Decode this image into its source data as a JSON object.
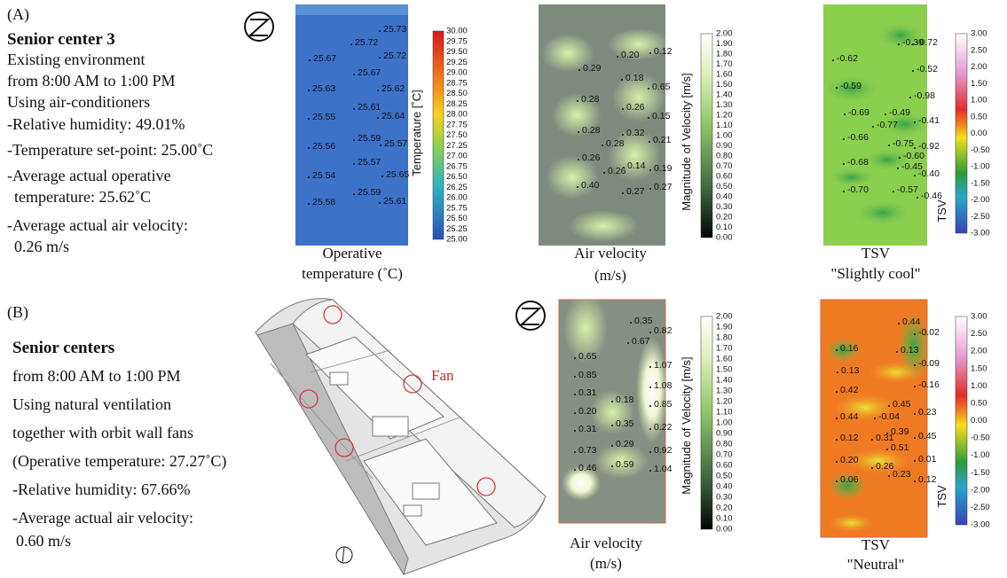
{
  "panel_a": {
    "label": "(A)",
    "title": "Senior center 3",
    "details": [
      "Existing environment",
      "from 8:00 AM  to 1:00 PM",
      "Using air-conditioners",
      "-Relative humidity: 49.01%",
      "-Temperature set-point: 25.00˚C",
      "-Average actual operative",
      "temperature: 25.62˚C",
      "-Average actual air velocity:",
      "0.26 m/s"
    ],
    "maps": [
      {
        "points": [
          "25.73",
          "25.72",
          "25.67",
          "25.72",
          "25.67",
          "25.63",
          "25.62",
          "25.61",
          "25.55",
          "25.64",
          "25.59",
          "25.57",
          "25.56",
          "25.57",
          "25.54",
          "25.65",
          "25.59",
          "25.58",
          "25.61"
        ],
        "colorbar": {
          "title": "Temperature [˚C]",
          "ticks": [
            "30.00",
            "29.75",
            "29.50",
            "29.25",
            "29.00",
            "28.75",
            "28.50",
            "28.25",
            "28.00",
            "27.75",
            "27.50",
            "27.25",
            "27.00",
            "26.75",
            "26.50",
            "26.25",
            "26.00",
            "25.75",
            "25.50",
            "25.25",
            "25.00"
          ]
        },
        "caption": [
          "Operative",
          "temperature (˚C)"
        ]
      },
      {
        "points": [
          "0.20",
          "0.12",
          "0.29",
          "0.18",
          "0.65",
          "0.28",
          "0.26",
          "0.15",
          "0.28",
          "0.32",
          "0.21",
          "0.28",
          "0.26",
          "0.14",
          "0.19",
          "0.26",
          "0.40",
          "0.27",
          "0.27"
        ],
        "colorbar": {
          "title": "Magnitude of Velocity [m/s]",
          "ticks": [
            "2.00",
            "1.90",
            "1.80",
            "1.70",
            "1.60",
            "1.50",
            "1.40",
            "1.30",
            "1.20",
            "1.10",
            "1.00",
            "0.90",
            "0.80",
            "0.70",
            "0.60",
            "0.50",
            "0.40",
            "0.30",
            "0.20",
            "0.10",
            "0.00"
          ]
        },
        "caption": [
          "Air velocity",
          "(m/s)"
        ]
      },
      {
        "points": [
          "-0.39",
          "-0.72",
          "-0.62",
          "-0.52",
          "-0.59",
          "-0.98",
          "-0.69",
          "-0.49",
          "-0.41",
          "-0.77",
          "-0.66",
          "-0.75",
          "-0.92",
          "-0.60",
          "-0.68",
          "-0.45",
          "-0.40",
          "-0.70",
          "-0.57",
          "-0.46"
        ],
        "colorbar": {
          "title": "TSV",
          "ticks": [
            "3.00",
            "2.50",
            "2.00",
            "1.50",
            "1.00",
            "0.50",
            "0.00",
            "-0.50",
            "-1.00",
            "-1.50",
            "-2.00",
            "-2.50",
            "-3.00"
          ]
        },
        "caption": [
          "TSV",
          "\"Slightly cool\""
        ]
      }
    ]
  },
  "panel_b": {
    "label": "(B)",
    "title": "Senior centers",
    "details": [
      "from 8:00 AM  to 1:00 PM",
      "Using natural ventilation",
      "together with orbit wall fans",
      "(Operative temperature: 27.27˚C)",
      "-Relative humidity: 67.66%",
      "-Average actual air velocity:",
      "0.60 m/s"
    ],
    "fan_label": "Fan",
    "maps": [
      {
        "points": [
          "0.35",
          "0.82",
          "0.67",
          "0.65",
          "1.07",
          "0.85",
          "1.08",
          "0.31",
          "0.18",
          "0.85",
          "0.20",
          "0.35",
          "0.22",
          "0.31",
          "0.29",
          "0.92",
          "0.73",
          "0.59",
          "1.04",
          "0.46"
        ],
        "colorbar": {
          "title": "Magnitude of Velocity [m/s]",
          "ticks": [
            "2.00",
            "1.90",
            "1.80",
            "1.70",
            "1.60",
            "1.50",
            "1.40",
            "1.30",
            "1.20",
            "1.10",
            "1.00",
            "0.90",
            "0.80",
            "0.70",
            "0.60",
            "0.50",
            "0.40",
            "0.30",
            "0.20",
            "0.10",
            "0.00"
          ]
        },
        "caption": [
          "Air velocity",
          "(m/s)"
        ]
      },
      {
        "points": [
          "0.44",
          "-0.02",
          "0.16",
          "0.13",
          "0.13",
          "-0.09",
          "-0.16",
          "0.42",
          "0.45",
          "0.44",
          "-0.04",
          "0.23",
          "0.39",
          "0.12",
          "0.31",
          "0.45",
          "0.51",
          "0.20",
          "0.01",
          "0.26",
          "0.23",
          "0.12",
          "0.06"
        ],
        "colorbar": {
          "title": "TSV",
          "ticks": [
            "3.00",
            "2.50",
            "2.00",
            "1.50",
            "1.00",
            "0.50",
            "0.00",
            "-0.50",
            "-1.00",
            "-1.50",
            "-2.00",
            "-2.50",
            "-3.00"
          ]
        },
        "caption": [
          "TSV",
          "\"Neutral\""
        ]
      }
    ]
  }
}
